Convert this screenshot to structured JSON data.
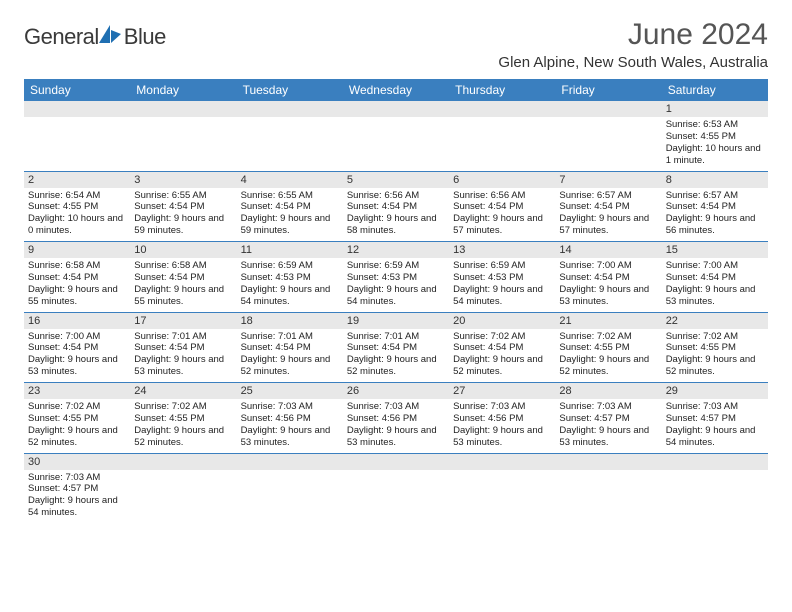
{
  "logo": {
    "text1": "General",
    "text2": "Blue",
    "mark_color": "#1f6fb2"
  },
  "title": "June 2024",
  "subtitle": "Glen Alpine, New South Wales, Australia",
  "colors": {
    "header_bg": "#3a7fbf",
    "header_text": "#ffffff",
    "daynum_bg": "#e8e8e8",
    "rule": "#3a7fbf"
  },
  "typography": {
    "title_fontsize": 30,
    "subtitle_fontsize": 15,
    "header_fontsize": 12,
    "daynum_fontsize": 11,
    "body_fontsize": 9.5
  },
  "day_headers": [
    "Sunday",
    "Monday",
    "Tuesday",
    "Wednesday",
    "Thursday",
    "Friday",
    "Saturday"
  ],
  "weeks": [
    [
      {
        "n": "",
        "empty": true
      },
      {
        "n": "",
        "empty": true
      },
      {
        "n": "",
        "empty": true
      },
      {
        "n": "",
        "empty": true
      },
      {
        "n": "",
        "empty": true
      },
      {
        "n": "",
        "empty": true
      },
      {
        "n": "1",
        "sunrise": "6:53 AM",
        "sunset": "4:55 PM",
        "daylight": "10 hours and 1 minute."
      }
    ],
    [
      {
        "n": "2",
        "sunrise": "6:54 AM",
        "sunset": "4:55 PM",
        "daylight": "10 hours and 0 minutes."
      },
      {
        "n": "3",
        "sunrise": "6:55 AM",
        "sunset": "4:54 PM",
        "daylight": "9 hours and 59 minutes."
      },
      {
        "n": "4",
        "sunrise": "6:55 AM",
        "sunset": "4:54 PM",
        "daylight": "9 hours and 59 minutes."
      },
      {
        "n": "5",
        "sunrise": "6:56 AM",
        "sunset": "4:54 PM",
        "daylight": "9 hours and 58 minutes."
      },
      {
        "n": "6",
        "sunrise": "6:56 AM",
        "sunset": "4:54 PM",
        "daylight": "9 hours and 57 minutes."
      },
      {
        "n": "7",
        "sunrise": "6:57 AM",
        "sunset": "4:54 PM",
        "daylight": "9 hours and 57 minutes."
      },
      {
        "n": "8",
        "sunrise": "6:57 AM",
        "sunset": "4:54 PM",
        "daylight": "9 hours and 56 minutes."
      }
    ],
    [
      {
        "n": "9",
        "sunrise": "6:58 AM",
        "sunset": "4:54 PM",
        "daylight": "9 hours and 55 minutes."
      },
      {
        "n": "10",
        "sunrise": "6:58 AM",
        "sunset": "4:54 PM",
        "daylight": "9 hours and 55 minutes."
      },
      {
        "n": "11",
        "sunrise": "6:59 AM",
        "sunset": "4:53 PM",
        "daylight": "9 hours and 54 minutes."
      },
      {
        "n": "12",
        "sunrise": "6:59 AM",
        "sunset": "4:53 PM",
        "daylight": "9 hours and 54 minutes."
      },
      {
        "n": "13",
        "sunrise": "6:59 AM",
        "sunset": "4:53 PM",
        "daylight": "9 hours and 54 minutes."
      },
      {
        "n": "14",
        "sunrise": "7:00 AM",
        "sunset": "4:54 PM",
        "daylight": "9 hours and 53 minutes."
      },
      {
        "n": "15",
        "sunrise": "7:00 AM",
        "sunset": "4:54 PM",
        "daylight": "9 hours and 53 minutes."
      }
    ],
    [
      {
        "n": "16",
        "sunrise": "7:00 AM",
        "sunset": "4:54 PM",
        "daylight": "9 hours and 53 minutes."
      },
      {
        "n": "17",
        "sunrise": "7:01 AM",
        "sunset": "4:54 PM",
        "daylight": "9 hours and 53 minutes."
      },
      {
        "n": "18",
        "sunrise": "7:01 AM",
        "sunset": "4:54 PM",
        "daylight": "9 hours and 52 minutes."
      },
      {
        "n": "19",
        "sunrise": "7:01 AM",
        "sunset": "4:54 PM",
        "daylight": "9 hours and 52 minutes."
      },
      {
        "n": "20",
        "sunrise": "7:02 AM",
        "sunset": "4:54 PM",
        "daylight": "9 hours and 52 minutes."
      },
      {
        "n": "21",
        "sunrise": "7:02 AM",
        "sunset": "4:55 PM",
        "daylight": "9 hours and 52 minutes."
      },
      {
        "n": "22",
        "sunrise": "7:02 AM",
        "sunset": "4:55 PM",
        "daylight": "9 hours and 52 minutes."
      }
    ],
    [
      {
        "n": "23",
        "sunrise": "7:02 AM",
        "sunset": "4:55 PM",
        "daylight": "9 hours and 52 minutes."
      },
      {
        "n": "24",
        "sunrise": "7:02 AM",
        "sunset": "4:55 PM",
        "daylight": "9 hours and 52 minutes."
      },
      {
        "n": "25",
        "sunrise": "7:03 AM",
        "sunset": "4:56 PM",
        "daylight": "9 hours and 53 minutes."
      },
      {
        "n": "26",
        "sunrise": "7:03 AM",
        "sunset": "4:56 PM",
        "daylight": "9 hours and 53 minutes."
      },
      {
        "n": "27",
        "sunrise": "7:03 AM",
        "sunset": "4:56 PM",
        "daylight": "9 hours and 53 minutes."
      },
      {
        "n": "28",
        "sunrise": "7:03 AM",
        "sunset": "4:57 PM",
        "daylight": "9 hours and 53 minutes."
      },
      {
        "n": "29",
        "sunrise": "7:03 AM",
        "sunset": "4:57 PM",
        "daylight": "9 hours and 54 minutes."
      }
    ],
    [
      {
        "n": "30",
        "sunrise": "7:03 AM",
        "sunset": "4:57 PM",
        "daylight": "9 hours and 54 minutes."
      },
      {
        "n": "",
        "empty": true
      },
      {
        "n": "",
        "empty": true
      },
      {
        "n": "",
        "empty": true
      },
      {
        "n": "",
        "empty": true
      },
      {
        "n": "",
        "empty": true
      },
      {
        "n": "",
        "empty": true
      }
    ]
  ],
  "labels": {
    "sunrise": "Sunrise:",
    "sunset": "Sunset:",
    "daylight": "Daylight:"
  }
}
